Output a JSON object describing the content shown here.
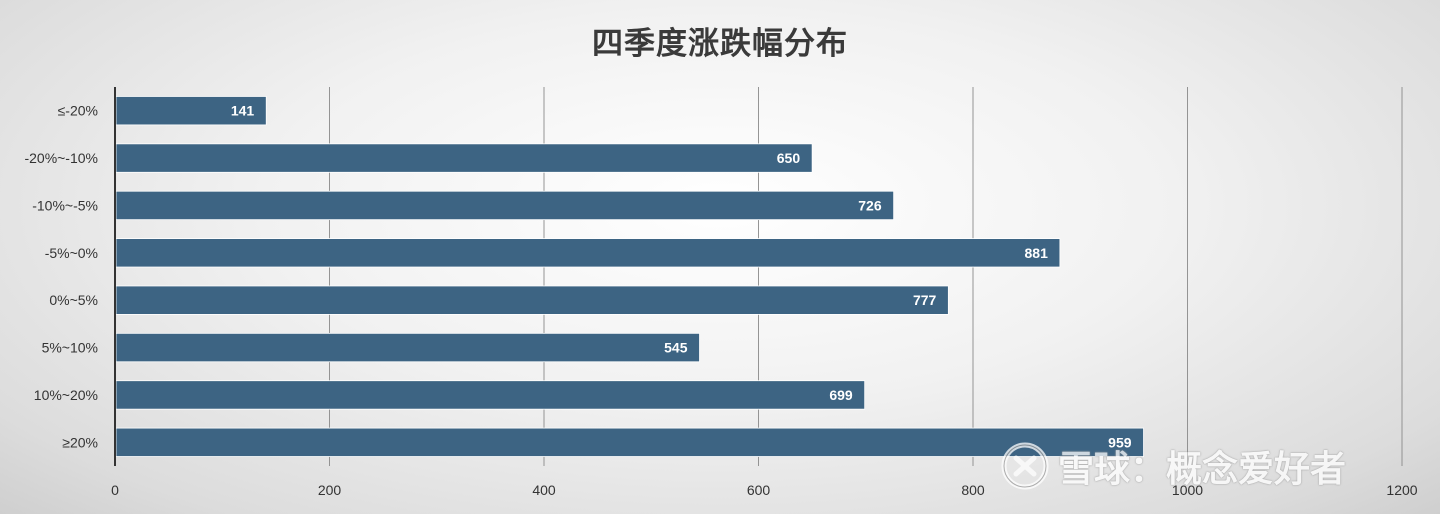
{
  "chart_data": {
    "type": "bar",
    "orientation": "horizontal",
    "title": "四季度涨跌幅分布",
    "categories": [
      "≤-20%",
      "-20%~-10%",
      "-10%~-5%",
      "-5%~0%",
      "0%~5%",
      "5%~10%",
      "10%~20%",
      "≥20%"
    ],
    "values": [
      141,
      650,
      726,
      881,
      777,
      545,
      699,
      959
    ],
    "xlim": [
      0,
      1200
    ],
    "xticks": [
      0,
      200,
      400,
      600,
      800,
      1000,
      1200
    ],
    "xlabel": "",
    "ylabel": "",
    "grid": "vertical",
    "legend": "none",
    "bar_color": "#3d6483",
    "data_label_color": "#ffffff"
  },
  "watermark": {
    "text": "雪球：概念爱好者",
    "icon": "snowball-logo"
  }
}
